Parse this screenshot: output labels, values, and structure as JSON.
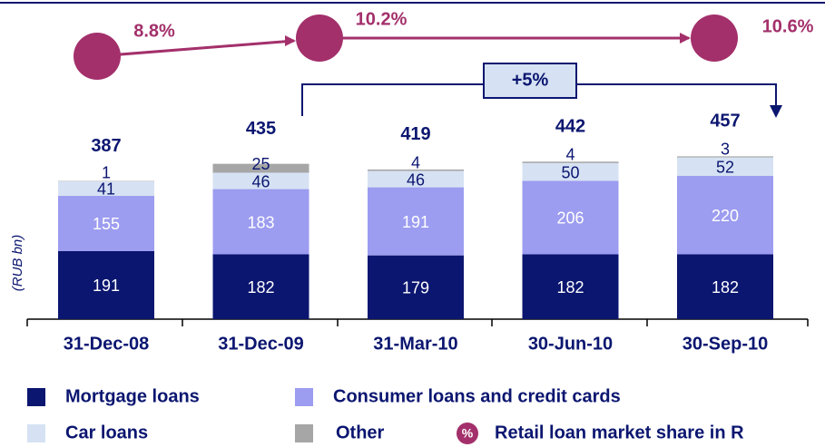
{
  "chart_data": {
    "type": "stacked_bar",
    "categories": [
      "31-Dec-08",
      "31-Dec-09",
      "31-Mar-10",
      "30-Jun-10",
      "30-Sep-10"
    ],
    "series": [
      {
        "name": "Mortgage loans",
        "color": "#0b1670",
        "label_color": "#ffffff",
        "values": [
          191,
          182,
          179,
          182,
          182
        ]
      },
      {
        "name": "Consumer loans and credit cards",
        "color": "#9c9cf0",
        "label_color": "#ffffff",
        "values": [
          155,
          183,
          191,
          206,
          220
        ]
      },
      {
        "name": "Car loans",
        "color": "#d6e2f3",
        "label_color": "#0b1670",
        "values": [
          41,
          46,
          46,
          50,
          52
        ]
      },
      {
        "name": "Other",
        "color": "#a6a6a6",
        "label_color": "#0b1670",
        "values": [
          1,
          25,
          4,
          4,
          3
        ]
      }
    ],
    "totals": [
      387,
      435,
      419,
      442,
      457
    ],
    "y_label": "(RUB bn)",
    "growth_label": "+5%",
    "market_share": {
      "name": "Retail loan market share in R",
      "icon_text": "%",
      "color": "#a3306b",
      "values": [
        8.8,
        10.2,
        10.6
      ],
      "value_labels": [
        "8.8%",
        "10.2%",
        "10.6%"
      ]
    }
  }
}
